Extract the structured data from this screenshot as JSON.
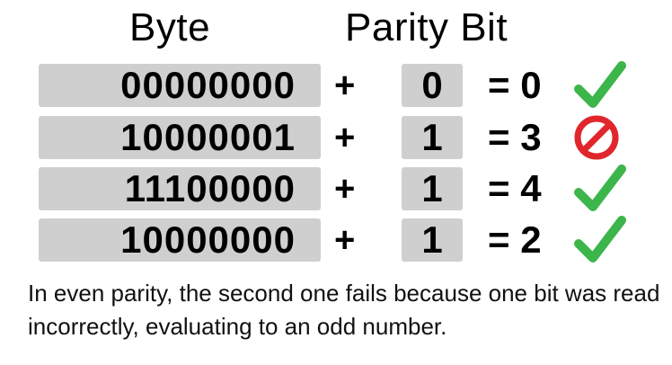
{
  "headers": {
    "byte": "Byte",
    "parity": "Parity Bit"
  },
  "rows": [
    {
      "byte": "00000000",
      "plus": "+",
      "parity": "0",
      "equals": "= 0",
      "status": "check-icon"
    },
    {
      "byte": "10000001",
      "plus": "+",
      "parity": "1",
      "equals": "= 3",
      "status": "prohibited-icon"
    },
    {
      "byte": "11100000",
      "plus": "+",
      "parity": "1",
      "equals": "= 4",
      "status": "check-icon"
    },
    {
      "byte": "10000000",
      "plus": "+",
      "parity": "1",
      "equals": "= 2",
      "status": "check-icon"
    }
  ],
  "caption": "In even parity, the second one fails because one bit was read incorrectly, evaluating to an odd number.",
  "colors": {
    "box": "#cfcfcf",
    "check": "#3cb54a",
    "fail": "#e0262b"
  }
}
